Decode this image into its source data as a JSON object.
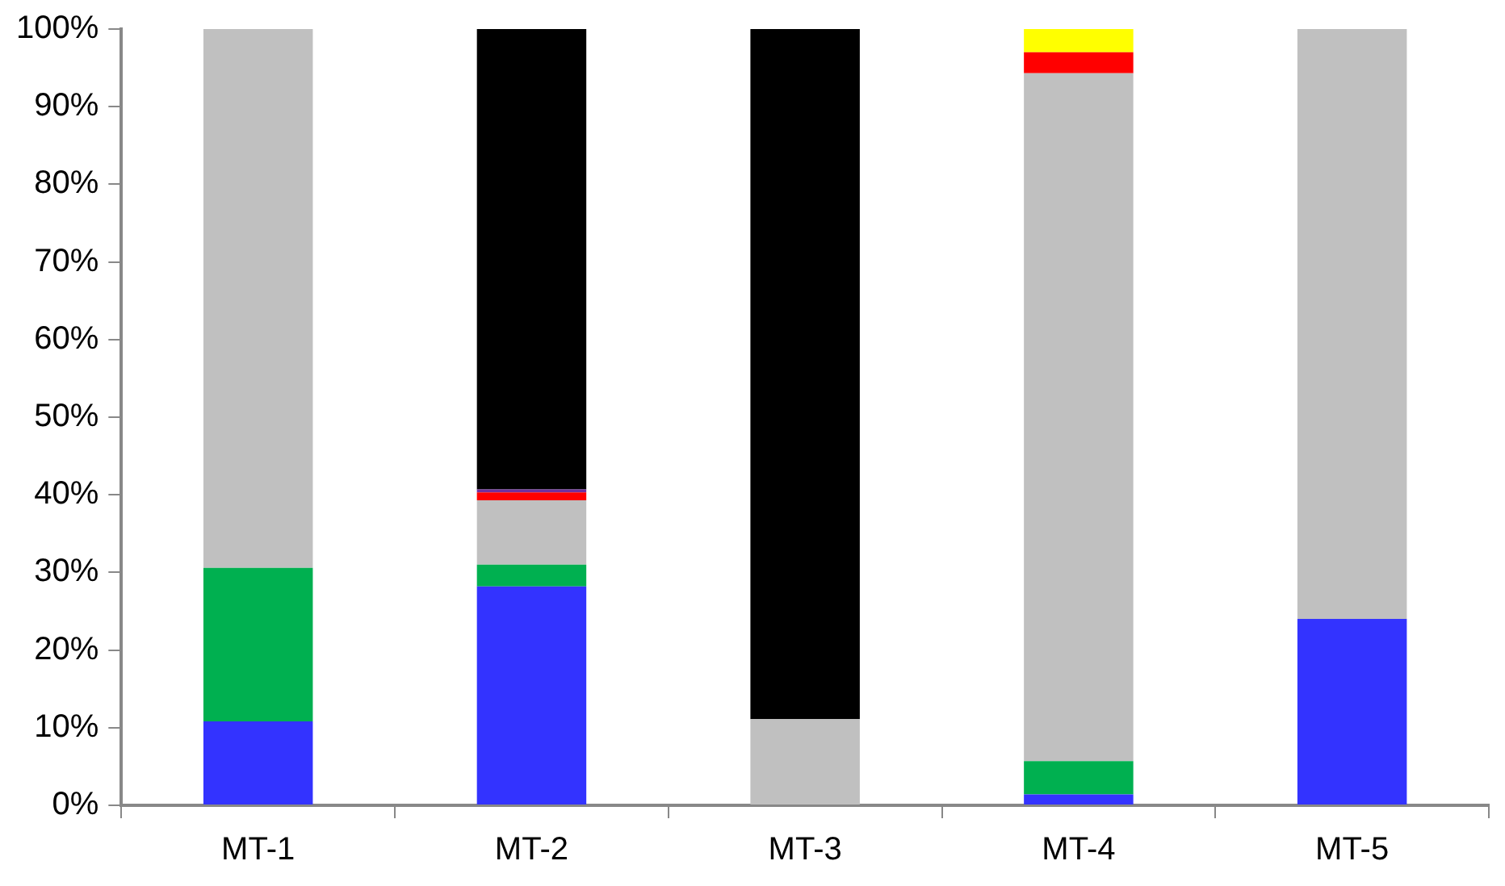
{
  "chart_data": {
    "type": "bar",
    "stacked": true,
    "categories": [
      "MT-1",
      "MT-2",
      "MT-3",
      "MT-4",
      "MT-5"
    ],
    "series": [
      {
        "color": "#3333ff",
        "values": [
          10.8,
          28.2,
          0,
          1.4,
          24.0
        ]
      },
      {
        "color": "#00b050",
        "values": [
          19.8,
          2.8,
          0,
          4.3,
          0
        ]
      },
      {
        "color": "#c0c0c0",
        "values": [
          69.4,
          8.3,
          11.1,
          88.6,
          76.0
        ]
      },
      {
        "color": "#ff0000",
        "values": [
          0,
          1.0,
          0,
          2.7,
          0
        ]
      },
      {
        "color": "#7030a0",
        "values": [
          0,
          0.4,
          0,
          0,
          0
        ]
      },
      {
        "color": "#ffff00",
        "values": [
          0,
          0,
          0,
          3.0,
          0
        ]
      },
      {
        "color": "#000000",
        "values": [
          0,
          59.3,
          88.9,
          0,
          0
        ]
      }
    ],
    "ylim": [
      0,
      100
    ],
    "yticks": [
      {
        "value": 0,
        "label": "0%"
      },
      {
        "value": 10,
        "label": "10%"
      },
      {
        "value": 20,
        "label": "20%"
      },
      {
        "value": 30,
        "label": "30%"
      },
      {
        "value": 40,
        "label": "40%"
      },
      {
        "value": 50,
        "label": "50%"
      },
      {
        "value": 60,
        "label": "60%"
      },
      {
        "value": 70,
        "label": "70%"
      },
      {
        "value": 80,
        "label": "80%"
      },
      {
        "value": 90,
        "label": "90%"
      },
      {
        "value": 100,
        "label": "100%"
      }
    ],
    "grid": false,
    "legend": false
  }
}
